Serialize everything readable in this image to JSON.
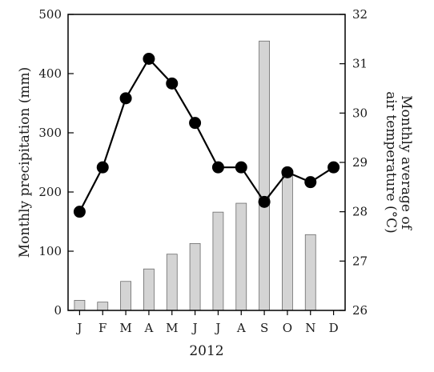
{
  "chart_data": {
    "type": "bar+line",
    "xlabel": "2012",
    "ylabel_left": "Monthly precipitation (mm)",
    "ylabel_right_line1": "Monthly average of",
    "ylabel_right_line2": "air temperature (°C)",
    "categories": [
      "J",
      "F",
      "M",
      "A",
      "M",
      "J",
      "J",
      "A",
      "S",
      "O",
      "N",
      "D"
    ],
    "series": [
      {
        "kind": "bar",
        "axis": "left",
        "values": [
          17,
          14,
          49,
          70,
          95,
          113,
          166,
          181,
          455,
          231,
          128,
          0
        ],
        "color": "#d4d4d4"
      },
      {
        "kind": "line",
        "axis": "right",
        "values": [
          28.0,
          28.9,
          30.3,
          31.1,
          30.6,
          29.8,
          28.9,
          28.9,
          28.2,
          28.8,
          28.6,
          28.9
        ],
        "color": "#000000"
      }
    ],
    "ylim_left": [
      0,
      500
    ],
    "yticks_left": [
      0,
      100,
      200,
      300,
      400,
      500
    ],
    "ylim_right": [
      26,
      32
    ],
    "yticks_right": [
      26,
      27,
      28,
      29,
      30,
      31,
      32
    ],
    "grid": false,
    "legend": "none"
  }
}
